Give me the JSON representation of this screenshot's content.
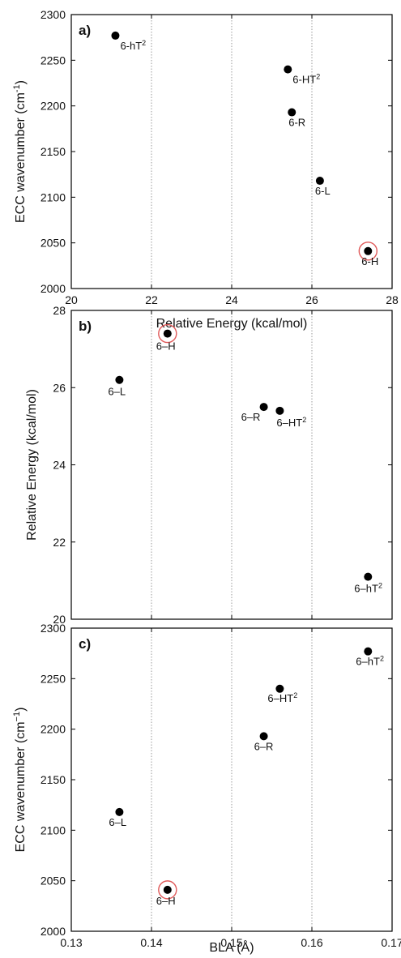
{
  "chart_data": [
    {
      "panel": "a)",
      "type": "scatter",
      "xlabel": "Relative Energy (kcal/mol)",
      "ylabel_main": "ECC wavenumber (cm",
      "ylabel_sup": "-1",
      "ylabel_close": ")",
      "xlim": [
        20,
        28
      ],
      "ylim": [
        2000,
        2300
      ],
      "xticks": [
        20,
        22,
        24,
        26,
        28
      ],
      "yticks": [
        2000,
        2050,
        2100,
        2150,
        2200,
        2250,
        2300
      ],
      "x_grid": true,
      "points": [
        {
          "label": "6-hT",
          "sup": "2",
          "x": 21.1,
          "y": 2277,
          "highlight": false
        },
        {
          "label": "6-HT",
          "sup": "2",
          "x": 25.4,
          "y": 2240,
          "highlight": false
        },
        {
          "label": "6-R",
          "sup": "",
          "x": 25.5,
          "y": 2193,
          "highlight": false
        },
        {
          "label": "6-L",
          "sup": "",
          "x": 26.2,
          "y": 2118,
          "highlight": false
        },
        {
          "label": "6-H",
          "sup": "",
          "x": 27.4,
          "y": 2041,
          "highlight": true
        }
      ]
    },
    {
      "panel": "b)",
      "type": "scatter",
      "xlabel": "",
      "ylabel_main": "Relative Energy (kcal/mol)",
      "ylabel_sup": "",
      "ylabel_close": "",
      "xlim": [
        0.13,
        0.17
      ],
      "ylim": [
        20,
        28
      ],
      "xticks": [],
      "yticks": [
        20,
        22,
        24,
        26,
        28
      ],
      "x_grid": true,
      "points": [
        {
          "label": "6–H",
          "sup": "",
          "x": 0.142,
          "y": 27.4,
          "highlight": true
        },
        {
          "label": "6–L",
          "sup": "",
          "x": 0.136,
          "y": 26.2,
          "highlight": false
        },
        {
          "label": "6–R",
          "sup": "",
          "x": 0.154,
          "y": 25.5,
          "highlight": false
        },
        {
          "label": "6–HT",
          "sup": "2",
          "x": 0.156,
          "y": 25.4,
          "highlight": false
        },
        {
          "label": "6–hT",
          "sup": "2",
          "x": 0.167,
          "y": 21.1,
          "highlight": false
        }
      ]
    },
    {
      "panel": "c)",
      "type": "scatter",
      "xlabel": "BLA (Å)",
      "ylabel_main": "ECC wavenumber (cm",
      "ylabel_sup": "−1",
      "ylabel_close": ")",
      "xlim": [
        0.13,
        0.17
      ],
      "ylim": [
        2000,
        2300
      ],
      "xticks": [
        0.13,
        0.14,
        0.15,
        0.16,
        0.17
      ],
      "yticks": [
        2000,
        2050,
        2100,
        2150,
        2200,
        2250,
        2300
      ],
      "x_grid": true,
      "points": [
        {
          "label": "6–hT",
          "sup": "2",
          "x": 0.167,
          "y": 2277,
          "highlight": false
        },
        {
          "label": "6–HT",
          "sup": "2",
          "x": 0.156,
          "y": 2240,
          "highlight": false
        },
        {
          "label": "6–R",
          "sup": "",
          "x": 0.154,
          "y": 2193,
          "highlight": false
        },
        {
          "label": "6–L",
          "sup": "",
          "x": 0.136,
          "y": 2118,
          "highlight": false
        },
        {
          "label": "6–H",
          "sup": "",
          "x": 0.142,
          "y": 2041,
          "highlight": true
        }
      ]
    }
  ],
  "colors": {
    "marker": "#000000",
    "highlight_ring": "#e05a5a",
    "grid": "#9a9a9a",
    "axis": "#000000"
  }
}
